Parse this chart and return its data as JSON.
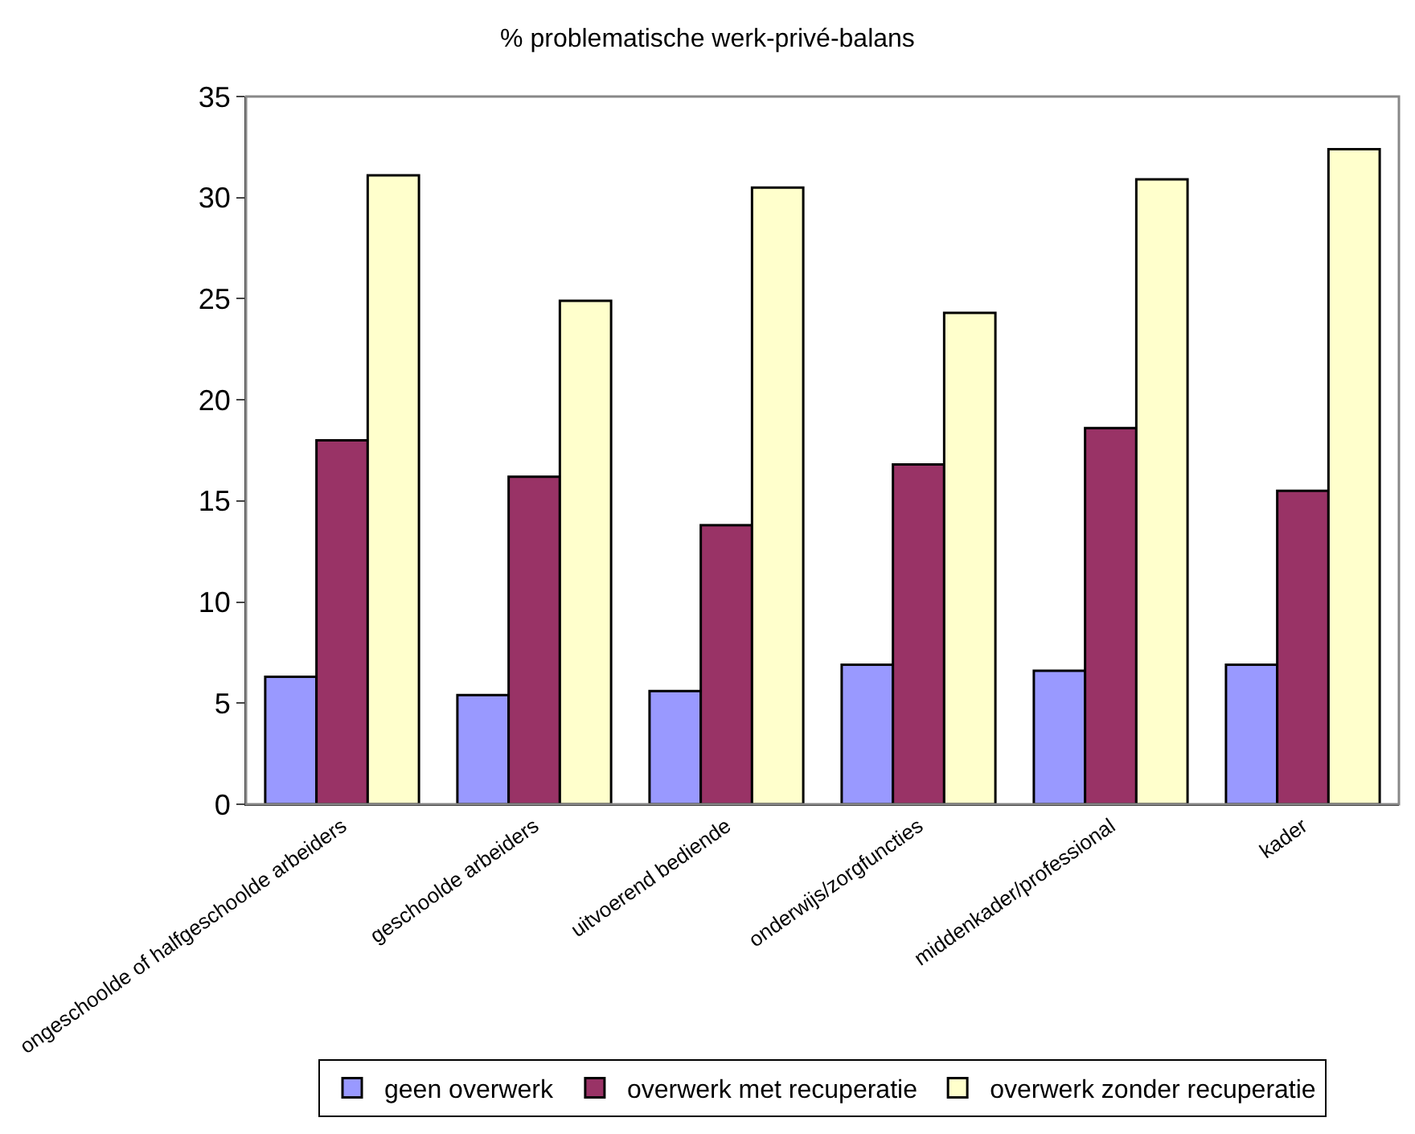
{
  "chart_data": {
    "type": "bar",
    "title": "% problematische werk-privé-balans",
    "categories": [
      "ongeschoolde of halfgeschoolde arbeiders",
      "geschoolde arbeiders",
      "uitvoerend bediende",
      "onderwijs/zorgfuncties",
      "middenkader/professional",
      "kader"
    ],
    "series": [
      {
        "name": "geen overwerk",
        "color": "#9999ff",
        "values": [
          6.3,
          5.4,
          5.6,
          6.9,
          6.6,
          6.9
        ]
      },
      {
        "name": "overwerk met recuperatie",
        "color": "#993366",
        "values": [
          18.0,
          16.2,
          13.8,
          16.8,
          18.6,
          15.5
        ]
      },
      {
        "name": "overwerk zonder recuperatie",
        "color": "#ffffcc",
        "values": [
          31.1,
          24.9,
          30.5,
          24.3,
          30.9,
          32.4
        ]
      }
    ],
    "ylim": [
      0,
      35
    ],
    "yticks": [
      0,
      5,
      10,
      15,
      20,
      25,
      30,
      35
    ],
    "legend": "bottom"
  }
}
